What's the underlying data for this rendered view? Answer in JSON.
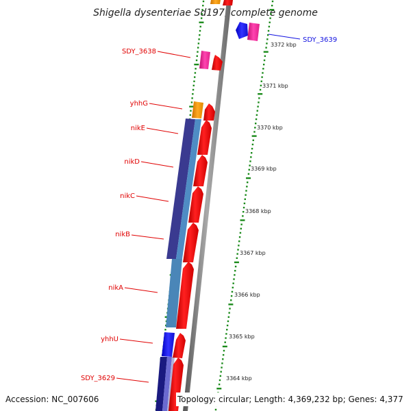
{
  "title": "Shigella dysenteriae Sd197, complete genome",
  "accession": "Accession: NC_007606",
  "topology": "Topology: circular; Length: 4,369,232 bp; Genes: 4,377",
  "kbp_labels": [
    "3372 kbp",
    "3371 kbp",
    "3370 kbp",
    "3369 kbp",
    "3368 kbp",
    "3367 kbp",
    "3366 kbp",
    "3365 kbp",
    "3364 kbp"
  ],
  "genes": [
    {
      "label": "SDY_3639",
      "color": "#1010e0"
    },
    {
      "label": "SDY_3638",
      "color": "#e00000"
    },
    {
      "label": "yhhG",
      "color": "#e00000"
    },
    {
      "label": "nikE",
      "color": "#e00000"
    },
    {
      "label": "nikD",
      "color": "#e00000"
    },
    {
      "label": "nikC",
      "color": "#e00000"
    },
    {
      "label": "nikB",
      "color": "#e00000"
    },
    {
      "label": "nikA",
      "color": "#e00000"
    },
    {
      "label": "yhhU",
      "color": "#e00000"
    },
    {
      "label": "SDY_3629",
      "color": "#e00000"
    }
  ],
  "colors": {
    "forward_strand": "#ff1010",
    "cog_orange": "#ff9900",
    "cog_pink": "#ff33aa",
    "cog_blue": "#1a1aff",
    "cog_navy": "#2a2a8a",
    "cog_steel": "#4a86b8",
    "backbone": "#888888",
    "ticks": "#1a8a1a"
  }
}
